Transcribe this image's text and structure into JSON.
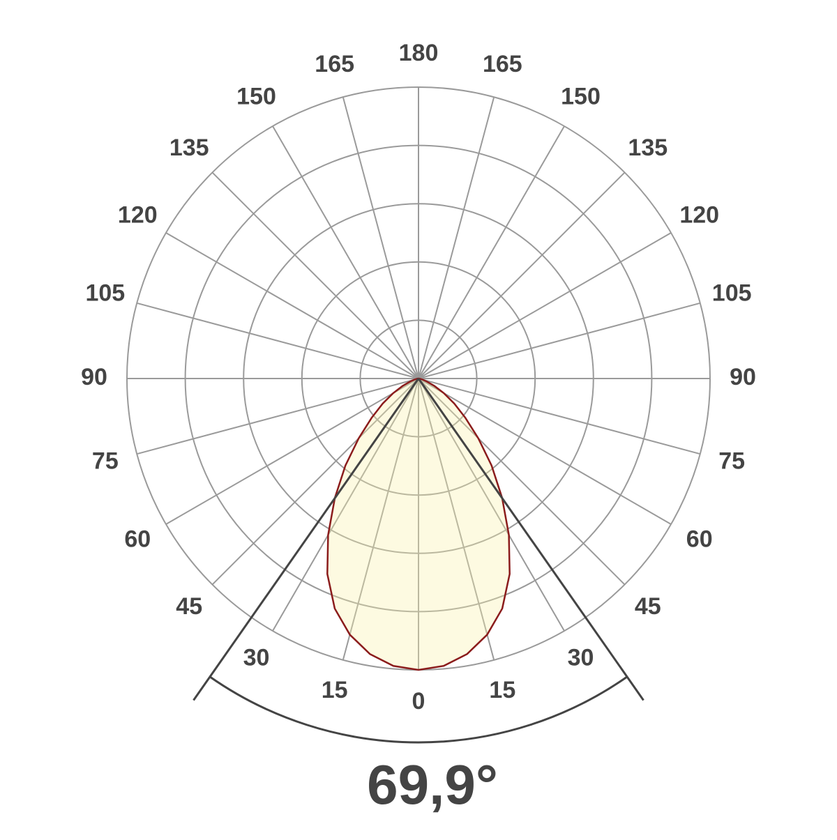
{
  "chart_data": {
    "type": "polar",
    "angle_ticks": [
      {
        "value": -165,
        "label": "165"
      },
      {
        "value": -150,
        "label": "150"
      },
      {
        "value": -135,
        "label": "135"
      },
      {
        "value": -120,
        "label": "120"
      },
      {
        "value": -105,
        "label": "105"
      },
      {
        "value": -90,
        "label": "90"
      },
      {
        "value": -75,
        "label": "75"
      },
      {
        "value": -60,
        "label": "60"
      },
      {
        "value": -45,
        "label": "45"
      },
      {
        "value": -30,
        "label": "30"
      },
      {
        "value": -15,
        "label": "15"
      },
      0,
      15,
      30,
      45,
      60,
      75,
      90,
      105,
      120,
      135,
      150,
      165,
      180
    ],
    "rlim": [
      0,
      100
    ],
    "rticks": [
      20,
      40,
      60,
      80,
      100
    ],
    "grid": true,
    "series": [
      {
        "color": "#8b1c1c",
        "angles": [
          -90,
          -85,
          -80,
          -75,
          -70,
          -65,
          -60,
          -55,
          -50,
          -45,
          -40,
          -35,
          -30,
          -25,
          -20,
          -15,
          -10,
          -5,
          0,
          5,
          10,
          15,
          20,
          25,
          30,
          35,
          40,
          45,
          50,
          55,
          60,
          65,
          70,
          75,
          80,
          85,
          90
        ],
        "values": [
          0,
          0,
          0.5,
          1.5,
          3,
          6,
          10,
          15,
          21,
          29,
          39,
          50,
          62,
          74,
          84,
          91,
          96,
          99,
          100,
          99,
          96,
          91,
          84,
          74,
          62,
          50,
          39,
          29,
          21,
          15,
          10,
          6,
          3,
          1.5,
          0.5,
          0,
          0
        ]
      }
    ],
    "beam_angle": {
      "value": 69.9,
      "label": "69,9°"
    }
  }
}
